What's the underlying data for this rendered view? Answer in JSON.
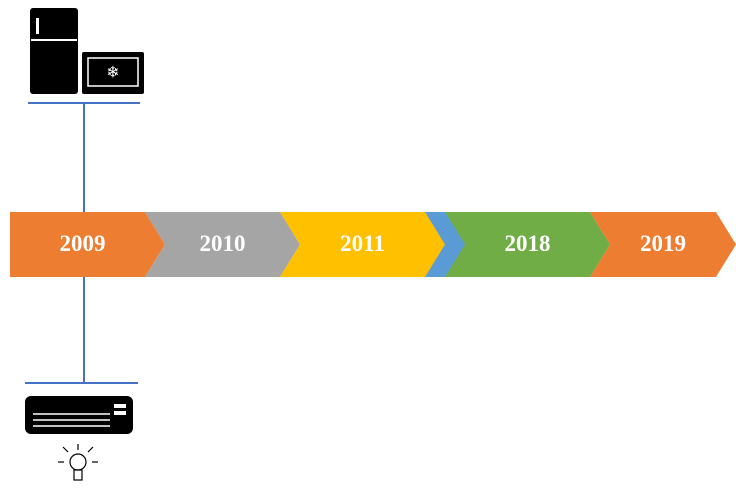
{
  "timeline": {
    "milestones": [
      {
        "label": "2009",
        "color": "#ed7d31"
      },
      {
        "label": "2010",
        "color": "#a5a5a5"
      },
      {
        "label": "2011",
        "color": "#ffc000"
      },
      {
        "label": "2018",
        "color": "#70ad47"
      },
      {
        "label": "2019",
        "color": "#ed7d31"
      }
    ]
  }
}
